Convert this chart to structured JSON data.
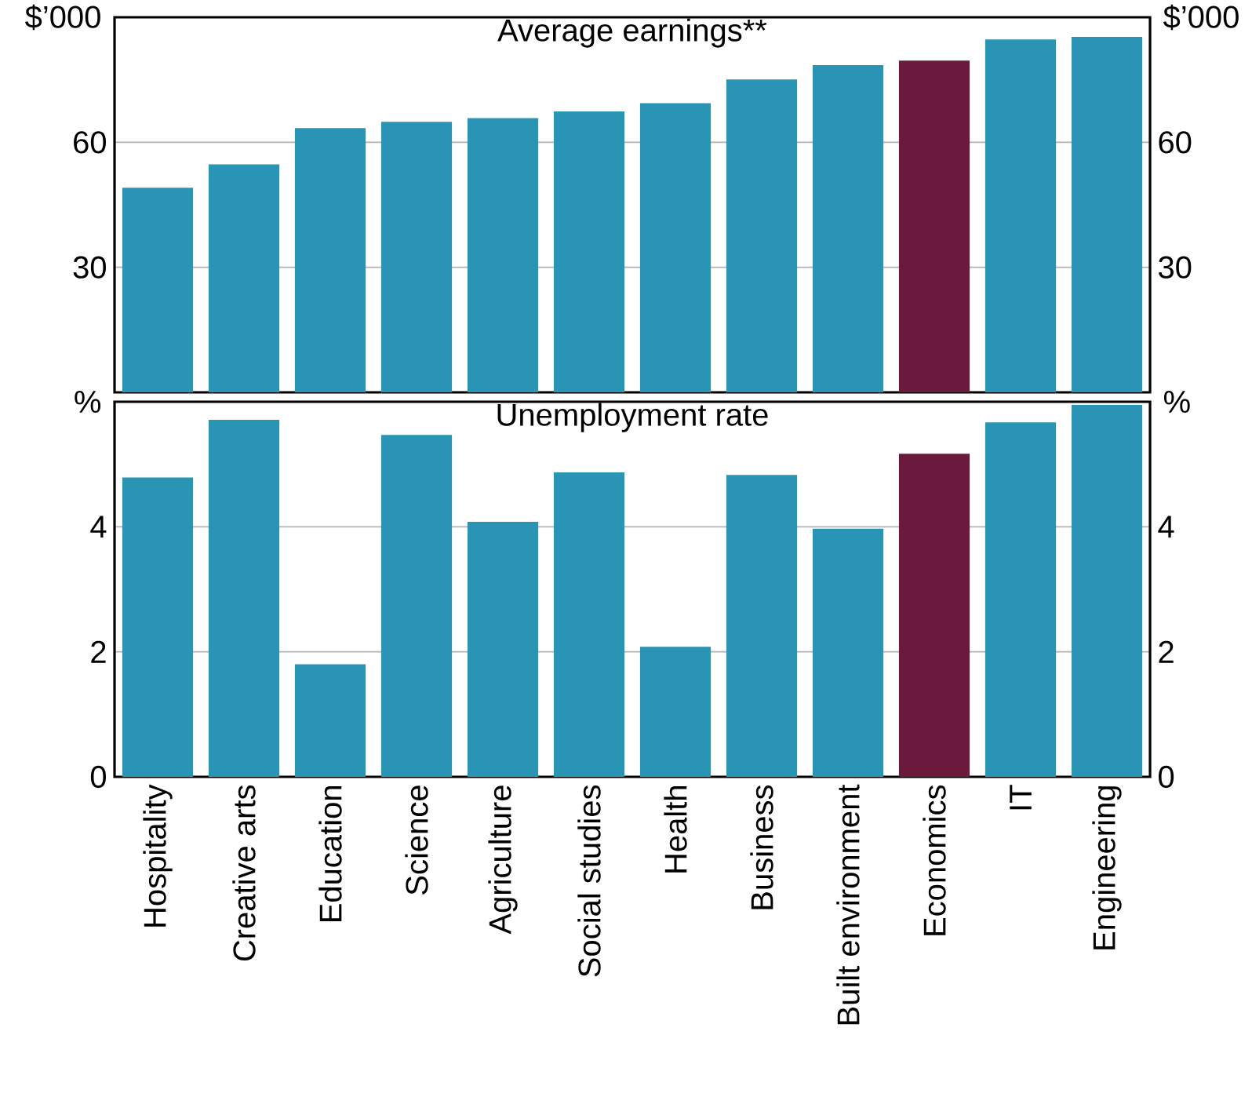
{
  "chart_data": [
    {
      "type": "bar",
      "title": "Average earnings**",
      "categories": [
        null,
        null,
        null,
        null,
        null,
        null,
        null,
        null,
        null,
        null,
        null,
        null
      ],
      "values": [
        49.1,
        54.7,
        63.4,
        64.9,
        65.8,
        67.4,
        69.4,
        75.1,
        78.5,
        79.6,
        84.7,
        85.3
      ],
      "colors": [
        "#2a94b4",
        "#2a94b4",
        "#2a94b4",
        "#2a94b4",
        "#2a94b4",
        "#2a94b4",
        "#2a94b4",
        "#2a94b4",
        "#2a94b4",
        "#6a1a3c",
        "#2a94b4",
        "#2a94b4"
      ],
      "ylabel": "$’000",
      "y2label": "$’000",
      "ylim": [
        0,
        90
      ],
      "yticks": [
        30,
        60,
        {
          "value": 90,
          "label": null
        }
      ],
      "y2lim": [
        0,
        90
      ],
      "y2ticks": [
        30,
        60
      ],
      "grid": "y",
      "tick_labels": "y"
    },
    {
      "type": "bar",
      "title": "Unemployment rate",
      "categories": [
        "Hospitality",
        "Creative arts",
        "Education",
        "Science",
        "Agriculture",
        "Social studies",
        "Health",
        "Business",
        "Built environment",
        "Economics",
        "IT",
        "Engineering"
      ],
      "values": [
        4.79,
        5.71,
        1.8,
        5.47,
        4.08,
        4.87,
        2.08,
        4.83,
        3.97,
        5.17,
        5.67,
        5.95
      ],
      "colors": [
        "#2a94b4",
        "#2a94b4",
        "#2a94b4",
        "#2a94b4",
        "#2a94b4",
        "#2a94b4",
        "#2a94b4",
        "#2a94b4",
        "#2a94b4",
        "#6a1a3c",
        "#2a94b4",
        "#2a94b4"
      ],
      "ylabel": "%",
      "y2label": "%",
      "ylim": [
        0,
        6
      ],
      "yticks": [
        0,
        2,
        4,
        {
          "value": 6,
          "label": null
        }
      ],
      "y2lim": [
        0,
        6
      ],
      "y2ticks": [
        0,
        2,
        4
      ],
      "grid": "y"
    }
  ]
}
